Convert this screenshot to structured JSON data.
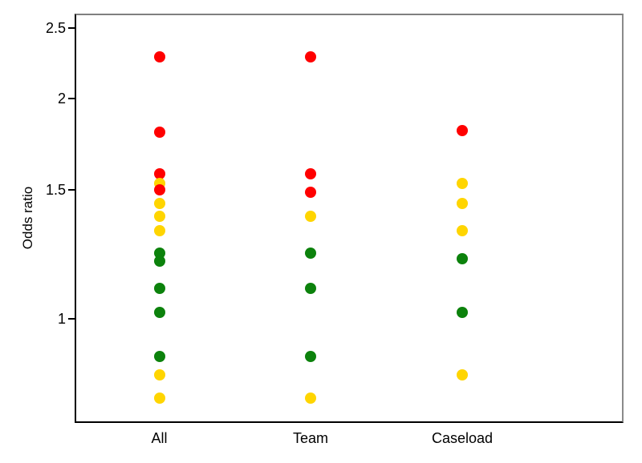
{
  "chart_data": {
    "type": "scatter",
    "title": "",
    "ylabel": "Odds ratio",
    "xlabel": "",
    "y_scale": "log",
    "ylim": [
      0.72,
      2.61
    ],
    "grid": false,
    "legend": "none",
    "y_ticks": [
      {
        "value": 2.5,
        "label": "2.5"
      },
      {
        "value": 2,
        "label": "2"
      },
      {
        "value": 1.5,
        "label": "1.5"
      },
      {
        "value": 1,
        "label": "1"
      }
    ],
    "categories": [
      "All",
      "Team",
      "Caseload"
    ],
    "point_colors": {
      "red": "#ff0000",
      "yellow": "#ffd500",
      "green": "#0c820c"
    },
    "series": [
      {
        "category": "All",
        "points": [
          {
            "value": 2.28,
            "color": "red"
          },
          {
            "value": 1.8,
            "color": "red"
          },
          {
            "value": 1.58,
            "color": "red"
          },
          {
            "value": 1.53,
            "color": "yellow"
          },
          {
            "value": 1.5,
            "color": "red"
          },
          {
            "value": 1.44,
            "color": "yellow"
          },
          {
            "value": 1.38,
            "color": "yellow"
          },
          {
            "value": 1.32,
            "color": "yellow"
          },
          {
            "value": 1.23,
            "color": "green"
          },
          {
            "value": 1.2,
            "color": "green"
          },
          {
            "value": 1.1,
            "color": "green"
          },
          {
            "value": 1.02,
            "color": "green"
          },
          {
            "value": 0.89,
            "color": "green"
          },
          {
            "value": 0.84,
            "color": "yellow"
          },
          {
            "value": 0.78,
            "color": "yellow"
          }
        ]
      },
      {
        "category": "Team",
        "points": [
          {
            "value": 2.28,
            "color": "red"
          },
          {
            "value": 1.58,
            "color": "red"
          },
          {
            "value": 1.49,
            "color": "red"
          },
          {
            "value": 1.38,
            "color": "yellow"
          },
          {
            "value": 1.23,
            "color": "green"
          },
          {
            "value": 1.1,
            "color": "green"
          },
          {
            "value": 0.89,
            "color": "green"
          },
          {
            "value": 0.78,
            "color": "yellow"
          }
        ]
      },
      {
        "category": "Caseload",
        "points": [
          {
            "value": 1.81,
            "color": "red"
          },
          {
            "value": 1.53,
            "color": "yellow"
          },
          {
            "value": 1.44,
            "color": "yellow"
          },
          {
            "value": 1.32,
            "color": "yellow"
          },
          {
            "value": 1.21,
            "color": "green"
          },
          {
            "value": 1.02,
            "color": "green"
          },
          {
            "value": 0.84,
            "color": "yellow"
          }
        ]
      }
    ]
  }
}
